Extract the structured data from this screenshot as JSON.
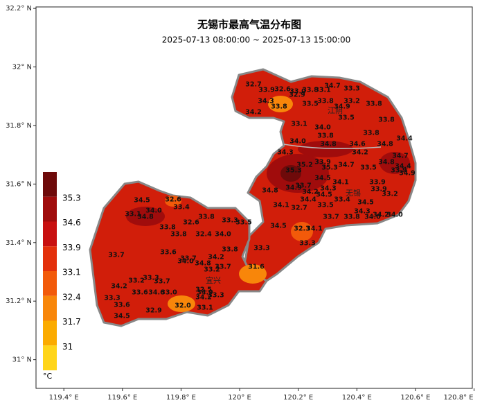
{
  "map": {
    "title": "无锡市最高气温分布图",
    "subtitle": "2025-07-13 08:00:00 ~ 2025-07-13 15:00:00",
    "ylim": [
      30.902,
      32.205
    ],
    "xlim": [
      119.305,
      120.794
    ],
    "yticks": [
      {
        "value": 32.2,
        "label": "32.2° N"
      },
      {
        "value": 32.0,
        "label": "32° N"
      },
      {
        "value": 31.8,
        "label": "31.8° N"
      },
      {
        "value": 31.6,
        "label": "31.6° N"
      },
      {
        "value": 31.4,
        "label": "31.4° N"
      },
      {
        "value": 31.2,
        "label": "31.2° N"
      },
      {
        "value": 31.0,
        "label": "31° N"
      }
    ],
    "xticks": [
      {
        "value": 119.4,
        "label": "119.4° E"
      },
      {
        "value": 119.6,
        "label": "119.6° E"
      },
      {
        "value": 119.8,
        "label": "119.8° E"
      },
      {
        "value": 120.0,
        "label": "120° E"
      },
      {
        "value": 120.2,
        "label": "120.2° E"
      },
      {
        "value": 120.4,
        "label": "120.4° E"
      },
      {
        "value": 120.6,
        "label": "120.6° E"
      },
      {
        "value": 120.8,
        "label": "120.8° E"
      }
    ],
    "legend": {
      "unit": "°C",
      "levels": [
        35.3,
        34.6,
        33.9,
        33.1,
        32.4,
        31.7,
        31.0
      ],
      "colors": [
        "#6e0a0a",
        "#a00c0c",
        "#c81010",
        "#e3300b",
        "#f25a0a",
        "#f8860a",
        "#fbab00",
        "#ffd51a"
      ]
    },
    "places": [
      "江阴",
      "无锡",
      "宜兴"
    ],
    "stations": [
      "32.7",
      "33.9",
      "32.6",
      "33.0",
      "33.8",
      "33.1",
      "34.7",
      "33.3",
      "34.3",
      "34.2",
      "33.8",
      "32.9",
      "33.5",
      "33.8",
      "34.9",
      "33.2",
      "33.8",
      "33.5",
      "33.8",
      "33.1",
      "34.0",
      "33.8",
      "33.8",
      "34.4",
      "34.0",
      "34.3",
      "34.8",
      "34.6",
      "34.8",
      "34.2",
      "34.7",
      "35.2",
      "35.3",
      "33.9",
      "35.3",
      "34.7",
      "33.5",
      "34.8",
      "34.4",
      "33.9",
      "34.9",
      "34.5",
      "34.1",
      "33.7",
      "34.9",
      "33.9",
      "33.9",
      "33.2",
      "34.8",
      "34.2",
      "34.3",
      "34.5",
      "34.4",
      "33.4",
      "34.5",
      "34.1",
      "32.7",
      "33.5",
      "34.3",
      "34.2",
      "34.0",
      "33.7",
      "33.8",
      "34.0",
      "34.5",
      "32.3",
      "34.1",
      "33.3",
      "33.3",
      "31.6",
      "32.6",
      "34.5",
      "33.4",
      "34.0",
      "33.1",
      "34.8",
      "33.8",
      "33.3",
      "33.5",
      "32.6",
      "33.8",
      "33.8",
      "32.4",
      "34.0",
      "33.7",
      "33.6",
      "33.8",
      "33.7",
      "34.0",
      "34.2",
      "34.8",
      "33.7",
      "33.2",
      "33.2",
      "33.3",
      "33.7",
      "34.2",
      "33.6",
      "34.6",
      "33.0",
      "32.5",
      "34.9",
      "34.2",
      "33.3",
      "33.3",
      "33.6",
      "32.0",
      "33.1",
      "32.9",
      "34.5"
    ]
  }
}
